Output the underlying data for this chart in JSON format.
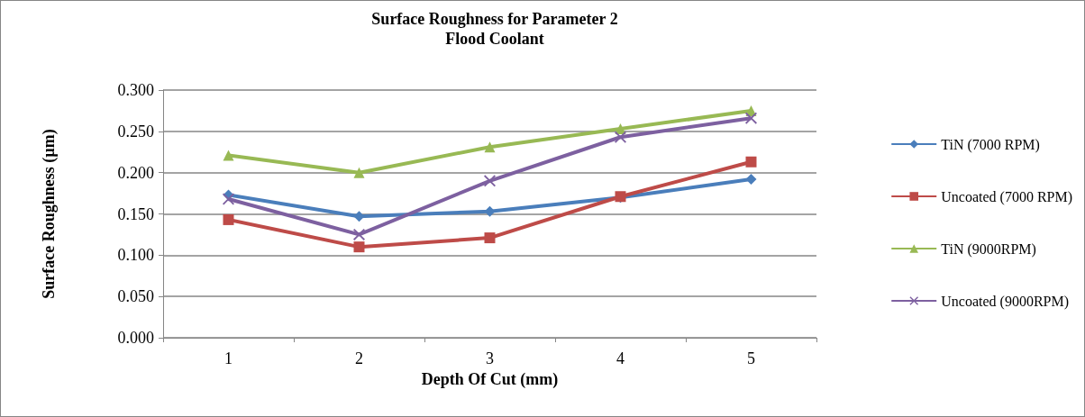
{
  "chart_data": {
    "type": "line",
    "title": "Surface Roughness for Parameter 2",
    "subtitle": "Flood Coolant",
    "xlabel": "Depth Of Cut (mm)",
    "ylabel": "Surface Roughness (µm)",
    "categories": [
      "1",
      "2",
      "3",
      "4",
      "5"
    ],
    "series": [
      {
        "name": "TiN (7000 RPM)",
        "color": "#4a7ebb",
        "marker": "diamond",
        "values": [
          0.173,
          0.147,
          0.153,
          0.17,
          0.192
        ]
      },
      {
        "name": "Uncoated (7000 RPM)",
        "color": "#be4b48",
        "marker": "square",
        "values": [
          0.143,
          0.11,
          0.121,
          0.171,
          0.213
        ]
      },
      {
        "name": "TiN (9000RPM)",
        "color": "#98b954",
        "marker": "triangle",
        "values": [
          0.221,
          0.2,
          0.231,
          0.253,
          0.275
        ]
      },
      {
        "name": "Uncoated (9000RPM)",
        "color": "#7d60a0",
        "marker": "cross",
        "values": [
          0.168,
          0.125,
          0.19,
          0.243,
          0.266
        ]
      }
    ],
    "ylim": [
      0,
      0.3
    ],
    "yticks": [
      {
        "value": 0,
        "label": "0.000"
      },
      {
        "value": 0.05,
        "label": "0.050"
      },
      {
        "value": 0.1,
        "label": "0.100"
      },
      {
        "value": 0.15,
        "label": "0.150"
      },
      {
        "value": 0.2,
        "label": "0.200"
      },
      {
        "value": 0.25,
        "label": "0.250"
      },
      {
        "value": 0.3,
        "label": "0.300"
      }
    ],
    "grid": "y",
    "legend": "right"
  }
}
